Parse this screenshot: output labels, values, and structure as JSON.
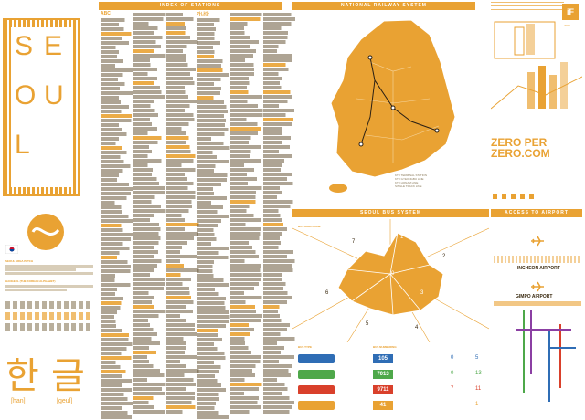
{
  "left": {
    "seoul_letters": [
      "S",
      "E",
      "O",
      "U",
      "L"
    ],
    "seoul_sub": "SEOUL AREA PATCH",
    "subway_title": "HANGEUL (THE KOREAN ALPHABET)",
    "hangul_big": [
      "한",
      "글"
    ],
    "romanized": [
      "[han]",
      "[geul]"
    ]
  },
  "index": {
    "header": "INDEX OF STATIONS",
    "abc_label": "ABC",
    "korean_label": "가나다"
  },
  "railway": {
    "header": "NATIONAL RAILWAY SYSTEM",
    "legend": [
      "KTX TERMINAL STATION",
      "KTX GYEONGBU LINE",
      "KTX HONAM LINE",
      "SINGLE TRACK LINE"
    ]
  },
  "brand": {
    "title_line1": "ZERO PER",
    "title_line2": "ZERO.COM",
    "year": "2008"
  },
  "bus": {
    "header": "SEOUL BUS SYSTEM",
    "bus_area": "BUS AREA ZONE",
    "zones": [
      "7",
      "1",
      "2",
      "0",
      "3",
      "4",
      "5",
      "6"
    ],
    "types_label": "BUS TYPE",
    "numbering_label": "BUS NUMBERING",
    "routes": [
      {
        "number": "105",
        "color": "#2f6db5",
        "c": "0",
        "d": "5"
      },
      {
        "number": "7013",
        "color": "#4ea84a",
        "c": "0",
        "d": "13"
      },
      {
        "number": "9711",
        "color": "#d9402b",
        "c": "7",
        "d": "11"
      },
      {
        "number": "41",
        "color": "#e9a233",
        "c": "",
        "d": "1"
      }
    ]
  },
  "airport": {
    "header": "ACCESS TO AIRPORT",
    "incheon": "INCHEON AIRPORT",
    "gimpo": "GIMPO AIRPORT"
  }
}
